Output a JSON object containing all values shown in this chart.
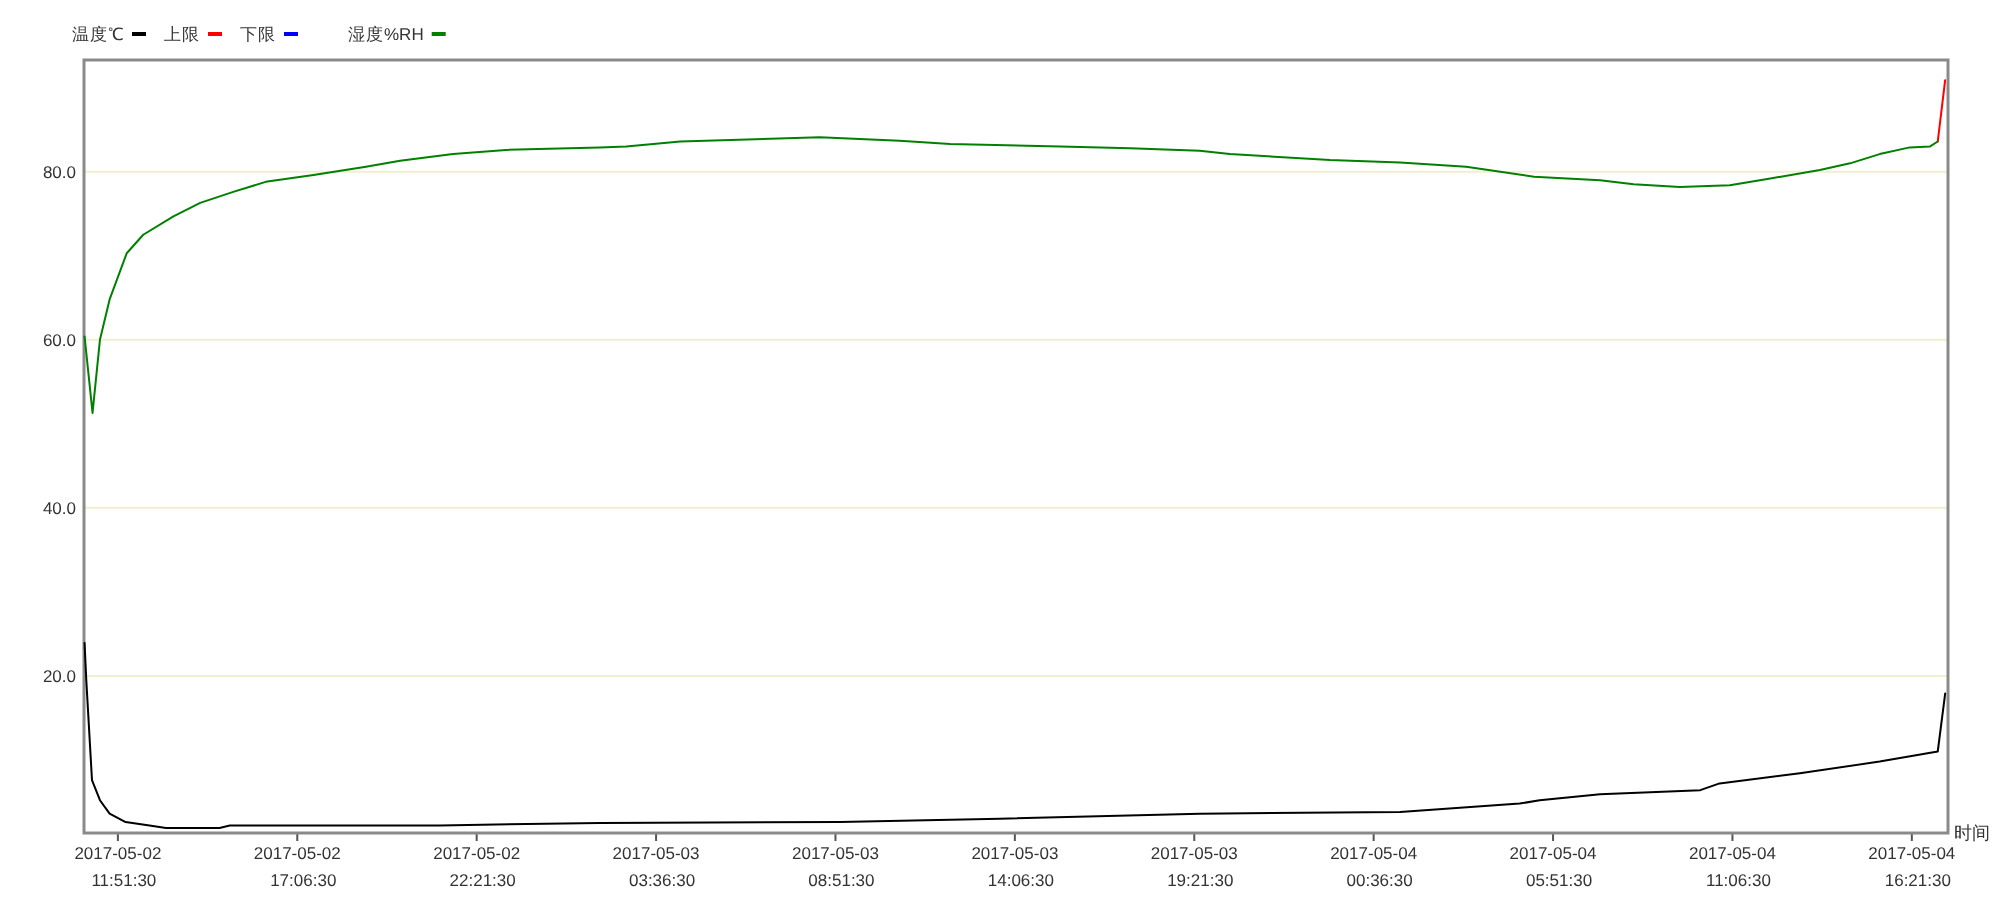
{
  "chart_data": {
    "type": "line",
    "xlabel": "时间",
    "xlim": [
      "2017-05-02T10:52",
      "2017-05-04T17:25"
    ],
    "xticks": [
      {
        "value": "2017-05-02T11:51:30",
        "label": "2017-05-02 11:51:30"
      },
      {
        "value": "2017-05-02T17:06:30",
        "label": "2017-05-02 17:06:30"
      },
      {
        "value": "2017-05-02T22:21:30",
        "label": "2017-05-02 22:21:30"
      },
      {
        "value": "2017-05-03T03:36:30",
        "label": "2017-05-03 03:36:30"
      },
      {
        "value": "2017-05-03T08:51:30",
        "label": "2017-05-03 08:51:30"
      },
      {
        "value": "2017-05-03T14:06:30",
        "label": "2017-05-03 14:06:30"
      },
      {
        "value": "2017-05-03T19:21:30",
        "label": "2017-05-03 19:21:30"
      },
      {
        "value": "2017-05-04T00:36:30",
        "label": "2017-05-04 00:36:30"
      },
      {
        "value": "2017-05-04T05:51:30",
        "label": "2017-05-04 05:51:30"
      },
      {
        "value": "2017-05-04T11:06:30",
        "label": "2017-05-04 11:06:30"
      },
      {
        "value": "2017-05-04T16:21:30",
        "label": "2017-05-04 16:21:30"
      }
    ],
    "ylim": [
      1.3,
      93.3
    ],
    "yticks": [
      {
        "value": 20,
        "label": "20.0"
      },
      {
        "value": 40,
        "label": "40.0"
      },
      {
        "value": 60,
        "label": "60.0"
      },
      {
        "value": 80,
        "label": "80.0"
      }
    ],
    "grid": "y",
    "legend": "top left",
    "marker": "none",
    "line_style": "solid",
    "series": [
      {
        "name": "温度℃",
        "color": "#000000",
        "x": [
          "2017-05-02T10:53",
          "2017-05-02T10:56",
          "2017-05-02T11:06",
          "2017-05-02T11:20",
          "2017-05-02T11:37",
          "2017-05-02T12:05",
          "2017-05-02T12:47",
          "2017-05-02T13:16",
          "2017-05-02T14:50",
          "2017-05-02T15:08",
          "2017-05-02T21:17",
          "2017-05-03T01:58",
          "2017-05-03T08:59",
          "2017-05-03T13:40",
          "2017-05-03T19:31",
          "2017-05-04T01:23",
          "2017-05-04T04:53",
          "2017-05-04T05:28",
          "2017-05-04T07:14",
          "2017-05-04T10:10",
          "2017-05-04T10:44",
          "2017-05-04T13:05",
          "2017-05-04T15:25",
          "2017-05-04T17:07",
          "2017-05-04T17:20"
        ],
        "values": [
          23.9,
          19.5,
          7.6,
          5.2,
          3.6,
          2.6,
          2.2,
          1.9,
          1.9,
          2.2,
          2.2,
          2.5,
          2.6,
          3.0,
          3.6,
          3.8,
          4.8,
          5.2,
          5.9,
          6.4,
          7.2,
          8.4,
          9.8,
          11.0,
          17.9
        ]
      },
      {
        "name": "上限",
        "color": "#ff0000",
        "x": [
          "2017-05-04T17:07",
          "2017-05-04T17:20"
        ],
        "values": [
          83.6,
          90.9
        ]
      },
      {
        "name": "下限",
        "color": "#0000ff"
      },
      {
        "name": "湿度%RH",
        "color": "#008000",
        "x": [
          "2017-05-02T10:53",
          "2017-05-02T11:07",
          "2017-05-02T11:20",
          "2017-05-02T11:37",
          "2017-05-02T12:07",
          "2017-05-02T12:36",
          "2017-05-02T13:29",
          "2017-05-02T14:16",
          "2017-05-02T15:14",
          "2017-05-02T16:11",
          "2017-05-02T17:35",
          "2017-05-02T19:07",
          "2017-05-02T20:07",
          "2017-05-02T21:40",
          "2017-05-02T23:13",
          "2017-05-03T01:58",
          "2017-05-03T02:44",
          "2017-05-03T04:19",
          "2017-05-03T08:24",
          "2017-05-03T10:44",
          "2017-05-03T12:13",
          "2017-05-03T15:26",
          "2017-05-03T17:29",
          "2017-05-03T19:31",
          "2017-05-03T20:24",
          "2017-05-03T23:20",
          "2017-05-04T01:23",
          "2017-05-04T03:19",
          "2017-05-04T05:18",
          "2017-05-04T07:14",
          "2017-05-04T08:13",
          "2017-05-04T09:34",
          "2017-05-04T11:02",
          "2017-05-04T12:13",
          "2017-05-04T13:40",
          "2017-05-04T14:33",
          "2017-05-04T15:25",
          "2017-05-04T16:18",
          "2017-05-04T16:53",
          "2017-05-04T17:07"
        ],
        "values": [
          60.4,
          51.3,
          60.0,
          64.8,
          70.3,
          72.5,
          74.7,
          76.3,
          77.6,
          78.8,
          79.6,
          80.6,
          81.3,
          82.1,
          82.6,
          82.9,
          83.0,
          83.6,
          84.1,
          83.7,
          83.3,
          83.0,
          82.8,
          82.5,
          82.1,
          81.4,
          81.1,
          80.6,
          79.4,
          79.0,
          78.5,
          78.2,
          78.4,
          79.2,
          80.2,
          81.0,
          82.1,
          82.9,
          83.0,
          83.6
        ]
      }
    ]
  }
}
